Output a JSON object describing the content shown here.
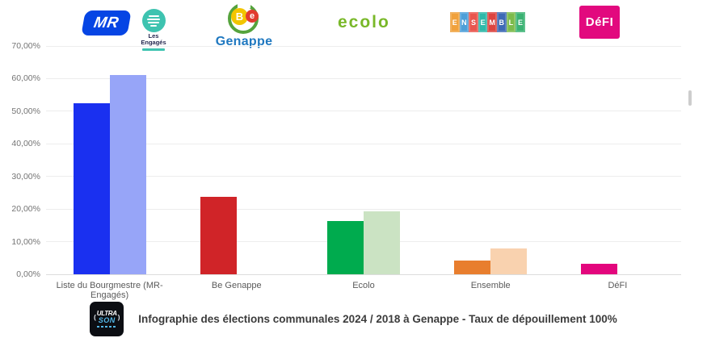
{
  "header": {
    "mr_logo": {
      "label": "MR"
    },
    "engages_logo": {
      "line1": "Les",
      "line2": "Engagés"
    },
    "be_genappe_logo": {
      "b": "B",
      "e": "e",
      "name": "Genappe"
    },
    "ecolo_logo": {
      "label": "ecolo"
    },
    "ensemble_logo": {
      "letters": [
        "E",
        "N",
        "S",
        "E",
        "M",
        "B",
        "L",
        "E"
      ],
      "colors": [
        "#F0A13C",
        "#4E9FD8",
        "#E9564E",
        "#2FB8A9",
        "#DC4440",
        "#3D6AB5",
        "#7CBB4C",
        "#3BB273"
      ]
    },
    "defi_logo": {
      "label": "DéFI"
    }
  },
  "chart_data": {
    "type": "bar",
    "categories": [
      "Liste du Bourgmestre (MR-Engagés)",
      "Be Genappe",
      "Ecolo",
      "Ensemble",
      "DéFI"
    ],
    "series": [
      {
        "name": "2024",
        "values": [
          52.5,
          23.7,
          16.3,
          4.2,
          3.2
        ],
        "colors": [
          "#1a30f0",
          "#d02428",
          "#00ab4e",
          "#e87e2e",
          "#e3067d"
        ]
      },
      {
        "name": "2018",
        "values": [
          61.0,
          null,
          19.4,
          7.8,
          null
        ],
        "colors": [
          "#97a5f8",
          null,
          "#cbe3c3",
          "#f9d2af",
          null
        ]
      }
    ],
    "title": "",
    "xlabel": "",
    "ylabel": "",
    "ylim": [
      0,
      70
    ],
    "ytick_step": 10,
    "ytick_labels": [
      "0,00%",
      "10,00%",
      "20,00%",
      "30,00%",
      "40,00%",
      "50,00%",
      "60,00%",
      "70,00%"
    ],
    "grid": true,
    "legend": "none"
  },
  "footer": {
    "ultrason_logo": {
      "line1": "ULTRA",
      "line2": "SON"
    },
    "caption": "Infographie des élections communales 2024 / 2018 à Genappe - Taux de dépouillement 100%"
  }
}
